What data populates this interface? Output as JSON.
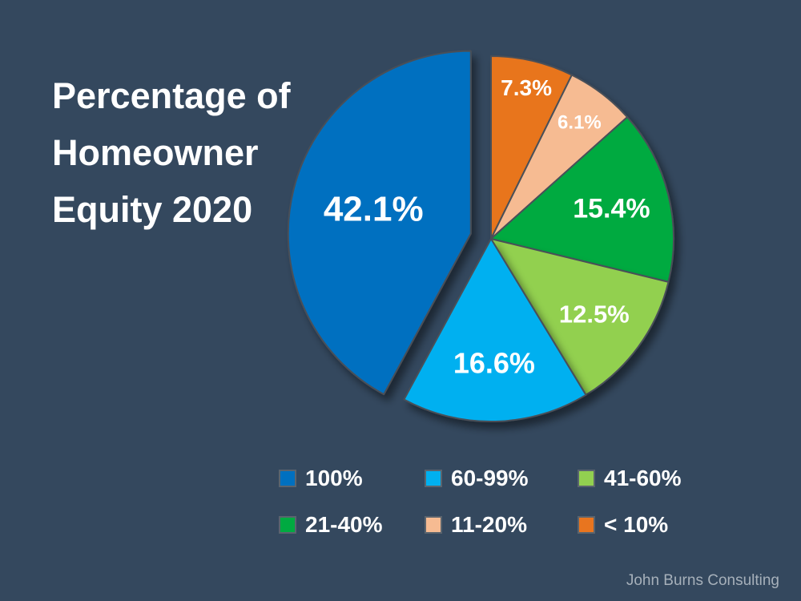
{
  "page": {
    "title_lines": [
      "Percentage of",
      "Homeowner",
      "Equity 2020"
    ],
    "footer": "John Burns Consulting",
    "background_color": "#34485E",
    "text_color": "#FFFFFF",
    "footer_color": "#A6B0BA"
  },
  "chart_data": {
    "type": "pie",
    "title": "Percentage of Homeowner Equity 2020",
    "legend_position": "bottom",
    "rotation_start": "12-o'clock",
    "direction": "clockwise",
    "exploded_slice": "100%",
    "slices": [
      {
        "label": "< 10%",
        "value": 7.3,
        "display": "7.3%",
        "color": "#E8751F",
        "exploded": false
      },
      {
        "label": "11-20%",
        "value": 6.1,
        "display": "6.1%",
        "color": "#F6BB92",
        "exploded": false
      },
      {
        "label": "21-40%",
        "value": 15.4,
        "display": "15.4%",
        "color": "#00AA41",
        "exploded": false
      },
      {
        "label": "41-60%",
        "value": 12.5,
        "display": "12.5%",
        "color": "#92D050",
        "exploded": false
      },
      {
        "label": "60-99%",
        "value": 16.6,
        "display": "16.6%",
        "color": "#00B0F0",
        "exploded": false
      },
      {
        "label": "100%",
        "value": 42.1,
        "display": "42.1%",
        "color": "#0070C0",
        "exploded": true
      }
    ]
  },
  "legend": {
    "items": [
      {
        "label": "100%",
        "color": "#0070C0"
      },
      {
        "label": "60-99%",
        "color": "#00B0F0"
      },
      {
        "label": "41-60%",
        "color": "#92D050"
      },
      {
        "label": "21-40%",
        "color": "#00AA41"
      },
      {
        "label": "11-20%",
        "color": "#F6BB92"
      },
      {
        "label": "< 10%",
        "color": "#E8751F"
      }
    ]
  }
}
